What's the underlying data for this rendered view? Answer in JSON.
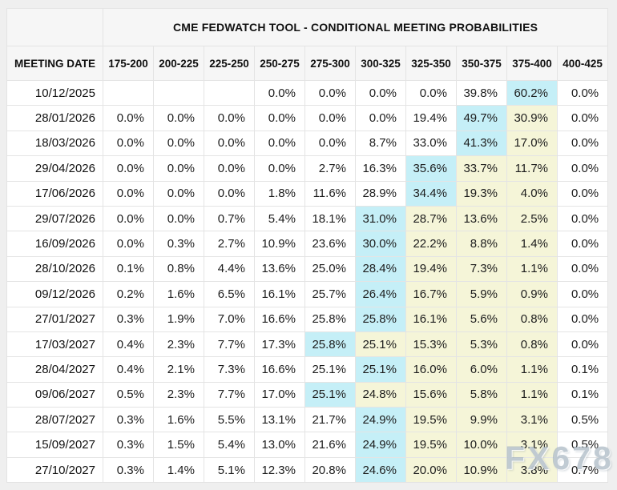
{
  "page": {
    "background_color": "#efefef"
  },
  "watermark": {
    "text": "FX678"
  },
  "table": {
    "title": "CME FEDWATCH TOOL - CONDITIONAL MEETING PROBABILITIES",
    "columns": [
      "MEETING DATE",
      "175-200",
      "200-225",
      "225-250",
      "250-275",
      "275-300",
      "300-325",
      "325-350",
      "350-375",
      "375-400",
      "400-425"
    ],
    "colors": {
      "cyan": "#c5eff7",
      "yellow": "#f5f5d8",
      "header_bg": "#f6f6f6",
      "border": "#e4e4e4"
    },
    "rows": [
      {
        "date": "10/12/2025",
        "values": [
          "",
          "",
          "",
          "0.0%",
          "0.0%",
          "0.0%",
          "0.0%",
          "39.8%",
          "60.2%",
          "0.0%"
        ],
        "styles": [
          "",
          "",
          "",
          "",
          "",
          "",
          "",
          "",
          "cyan",
          ""
        ]
      },
      {
        "date": "28/01/2026",
        "values": [
          "0.0%",
          "0.0%",
          "0.0%",
          "0.0%",
          "0.0%",
          "0.0%",
          "19.4%",
          "49.7%",
          "30.9%",
          "0.0%"
        ],
        "styles": [
          "",
          "",
          "",
          "",
          "",
          "",
          "",
          "cyan",
          "yellow",
          ""
        ]
      },
      {
        "date": "18/03/2026",
        "values": [
          "0.0%",
          "0.0%",
          "0.0%",
          "0.0%",
          "0.0%",
          "8.7%",
          "33.0%",
          "41.3%",
          "17.0%",
          "0.0%"
        ],
        "styles": [
          "",
          "",
          "",
          "",
          "",
          "",
          "",
          "cyan",
          "yellow",
          ""
        ]
      },
      {
        "date": "29/04/2026",
        "values": [
          "0.0%",
          "0.0%",
          "0.0%",
          "0.0%",
          "2.7%",
          "16.3%",
          "35.6%",
          "33.7%",
          "11.7%",
          "0.0%"
        ],
        "styles": [
          "",
          "",
          "",
          "",
          "",
          "",
          "cyan",
          "yellow",
          "yellow",
          ""
        ]
      },
      {
        "date": "17/06/2026",
        "values": [
          "0.0%",
          "0.0%",
          "0.0%",
          "1.8%",
          "11.6%",
          "28.9%",
          "34.4%",
          "19.3%",
          "4.0%",
          "0.0%"
        ],
        "styles": [
          "",
          "",
          "",
          "",
          "",
          "",
          "cyan",
          "yellow",
          "yellow",
          ""
        ]
      },
      {
        "date": "29/07/2026",
        "values": [
          "0.0%",
          "0.0%",
          "0.7%",
          "5.4%",
          "18.1%",
          "31.0%",
          "28.7%",
          "13.6%",
          "2.5%",
          "0.0%"
        ],
        "styles": [
          "",
          "",
          "",
          "",
          "",
          "cyan",
          "yellow",
          "yellow",
          "yellow",
          ""
        ]
      },
      {
        "date": "16/09/2026",
        "values": [
          "0.0%",
          "0.3%",
          "2.7%",
          "10.9%",
          "23.6%",
          "30.0%",
          "22.2%",
          "8.8%",
          "1.4%",
          "0.0%"
        ],
        "styles": [
          "",
          "",
          "",
          "",
          "",
          "cyan",
          "yellow",
          "yellow",
          "yellow",
          ""
        ]
      },
      {
        "date": "28/10/2026",
        "values": [
          "0.1%",
          "0.8%",
          "4.4%",
          "13.6%",
          "25.0%",
          "28.4%",
          "19.4%",
          "7.3%",
          "1.1%",
          "0.0%"
        ],
        "styles": [
          "",
          "",
          "",
          "",
          "",
          "cyan",
          "yellow",
          "yellow",
          "yellow",
          ""
        ]
      },
      {
        "date": "09/12/2026",
        "values": [
          "0.2%",
          "1.6%",
          "6.5%",
          "16.1%",
          "25.7%",
          "26.4%",
          "16.7%",
          "5.9%",
          "0.9%",
          "0.0%"
        ],
        "styles": [
          "",
          "",
          "",
          "",
          "",
          "cyan",
          "yellow",
          "yellow",
          "yellow",
          ""
        ]
      },
      {
        "date": "27/01/2027",
        "values": [
          "0.3%",
          "1.9%",
          "7.0%",
          "16.6%",
          "25.8%",
          "25.8%",
          "16.1%",
          "5.6%",
          "0.8%",
          "0.0%"
        ],
        "styles": [
          "",
          "",
          "",
          "",
          "",
          "cyan",
          "yellow",
          "yellow",
          "yellow",
          ""
        ]
      },
      {
        "date": "17/03/2027",
        "values": [
          "0.4%",
          "2.3%",
          "7.7%",
          "17.3%",
          "25.8%",
          "25.1%",
          "15.3%",
          "5.3%",
          "0.8%",
          "0.0%"
        ],
        "styles": [
          "",
          "",
          "",
          "",
          "cyan",
          "yellow",
          "yellow",
          "yellow",
          "yellow",
          ""
        ]
      },
      {
        "date": "28/04/2027",
        "values": [
          "0.4%",
          "2.1%",
          "7.3%",
          "16.6%",
          "25.1%",
          "25.1%",
          "16.0%",
          "6.0%",
          "1.1%",
          "0.1%"
        ],
        "styles": [
          "",
          "",
          "",
          "",
          "",
          "cyan",
          "yellow",
          "yellow",
          "yellow",
          ""
        ]
      },
      {
        "date": "09/06/2027",
        "values": [
          "0.5%",
          "2.3%",
          "7.7%",
          "17.0%",
          "25.1%",
          "24.8%",
          "15.6%",
          "5.8%",
          "1.1%",
          "0.1%"
        ],
        "styles": [
          "",
          "",
          "",
          "",
          "cyan",
          "yellow",
          "yellow",
          "yellow",
          "yellow",
          ""
        ]
      },
      {
        "date": "28/07/2027",
        "values": [
          "0.3%",
          "1.6%",
          "5.5%",
          "13.1%",
          "21.7%",
          "24.9%",
          "19.5%",
          "9.9%",
          "3.1%",
          "0.5%"
        ],
        "styles": [
          "",
          "",
          "",
          "",
          "",
          "cyan",
          "yellow",
          "yellow",
          "yellow",
          ""
        ]
      },
      {
        "date": "15/09/2027",
        "values": [
          "0.3%",
          "1.5%",
          "5.4%",
          "13.0%",
          "21.6%",
          "24.9%",
          "19.5%",
          "10.0%",
          "3.1%",
          "0.5%"
        ],
        "styles": [
          "",
          "",
          "",
          "",
          "",
          "cyan",
          "yellow",
          "yellow",
          "yellow",
          ""
        ]
      },
      {
        "date": "27/10/2027",
        "values": [
          "0.3%",
          "1.4%",
          "5.1%",
          "12.3%",
          "20.8%",
          "24.6%",
          "20.0%",
          "10.9%",
          "3.8%",
          "0.7%"
        ],
        "styles": [
          "",
          "",
          "",
          "",
          "",
          "cyan",
          "yellow",
          "yellow",
          "yellow",
          ""
        ]
      }
    ]
  }
}
